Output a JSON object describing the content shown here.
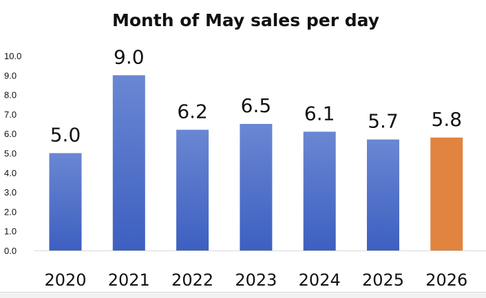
{
  "chart_data": {
    "type": "bar",
    "title": "Month of May sales per day",
    "xlabel": "",
    "ylabel": "",
    "categories": [
      "2020",
      "2021",
      "2022",
      "2023",
      "2024",
      "2025",
      "2026"
    ],
    "values": [
      5.0,
      9.0,
      6.2,
      6.5,
      6.1,
      5.7,
      5.8
    ],
    "data_labels": [
      "5.0",
      "9.0",
      "6.2",
      "6.5",
      "6.1",
      "5.7",
      "5.8"
    ],
    "yticks": [
      "0.0",
      "1.0",
      "2.0",
      "3.0",
      "4.0",
      "5.0",
      "6.0",
      "7.0",
      "8.0",
      "9.0",
      "10.0"
    ],
    "ylim": [
      0,
      10
    ],
    "grid": false,
    "legend": "none",
    "bar_colors": [
      "#4a6fc9",
      "#4a6fc9",
      "#4a6fc9",
      "#4a6fc9",
      "#4a6fc9",
      "#4a6fc9",
      "#e0843f"
    ]
  }
}
